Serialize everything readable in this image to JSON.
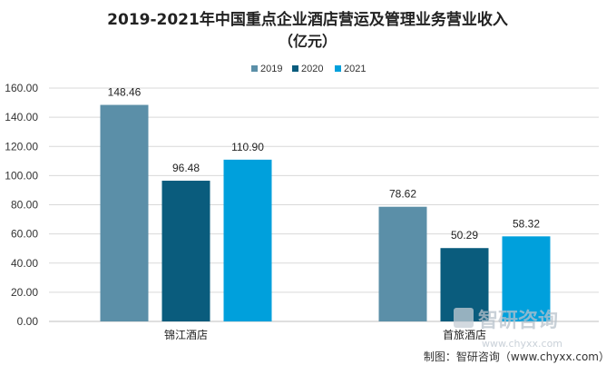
{
  "chart_data": {
    "type": "bar",
    "title_line1": "2019-2021年中国重点企业酒店营运及管理业务营业收入",
    "title_line2": "（亿元）",
    "categories": [
      "锦江酒店",
      "首旅酒店"
    ],
    "series": [
      {
        "name": "2019",
        "color": "#5b8fa8",
        "values": [
          148.46,
          78.62
        ],
        "labels": [
          "148.46",
          "78.62"
        ]
      },
      {
        "name": "2020",
        "color": "#0a5c7d",
        "values": [
          96.48,
          50.29
        ],
        "labels": [
          "96.48",
          "50.29"
        ]
      },
      {
        "name": "2021",
        "color": "#00a0dc",
        "values": [
          110.9,
          58.32
        ],
        "labels": [
          "110.90",
          "58.32"
        ]
      }
    ],
    "ylim": [
      0,
      160
    ],
    "yticks": [
      "0.00",
      "20.00",
      "40.00",
      "60.00",
      "80.00",
      "100.00",
      "120.00",
      "140.00",
      "160.00"
    ],
    "grid": true,
    "legend_position": "top-center"
  },
  "watermark": {
    "name": "智研咨询",
    "url": "www.chyxx.com"
  },
  "source": "制图：智研咨询（www.chyxx.com）"
}
